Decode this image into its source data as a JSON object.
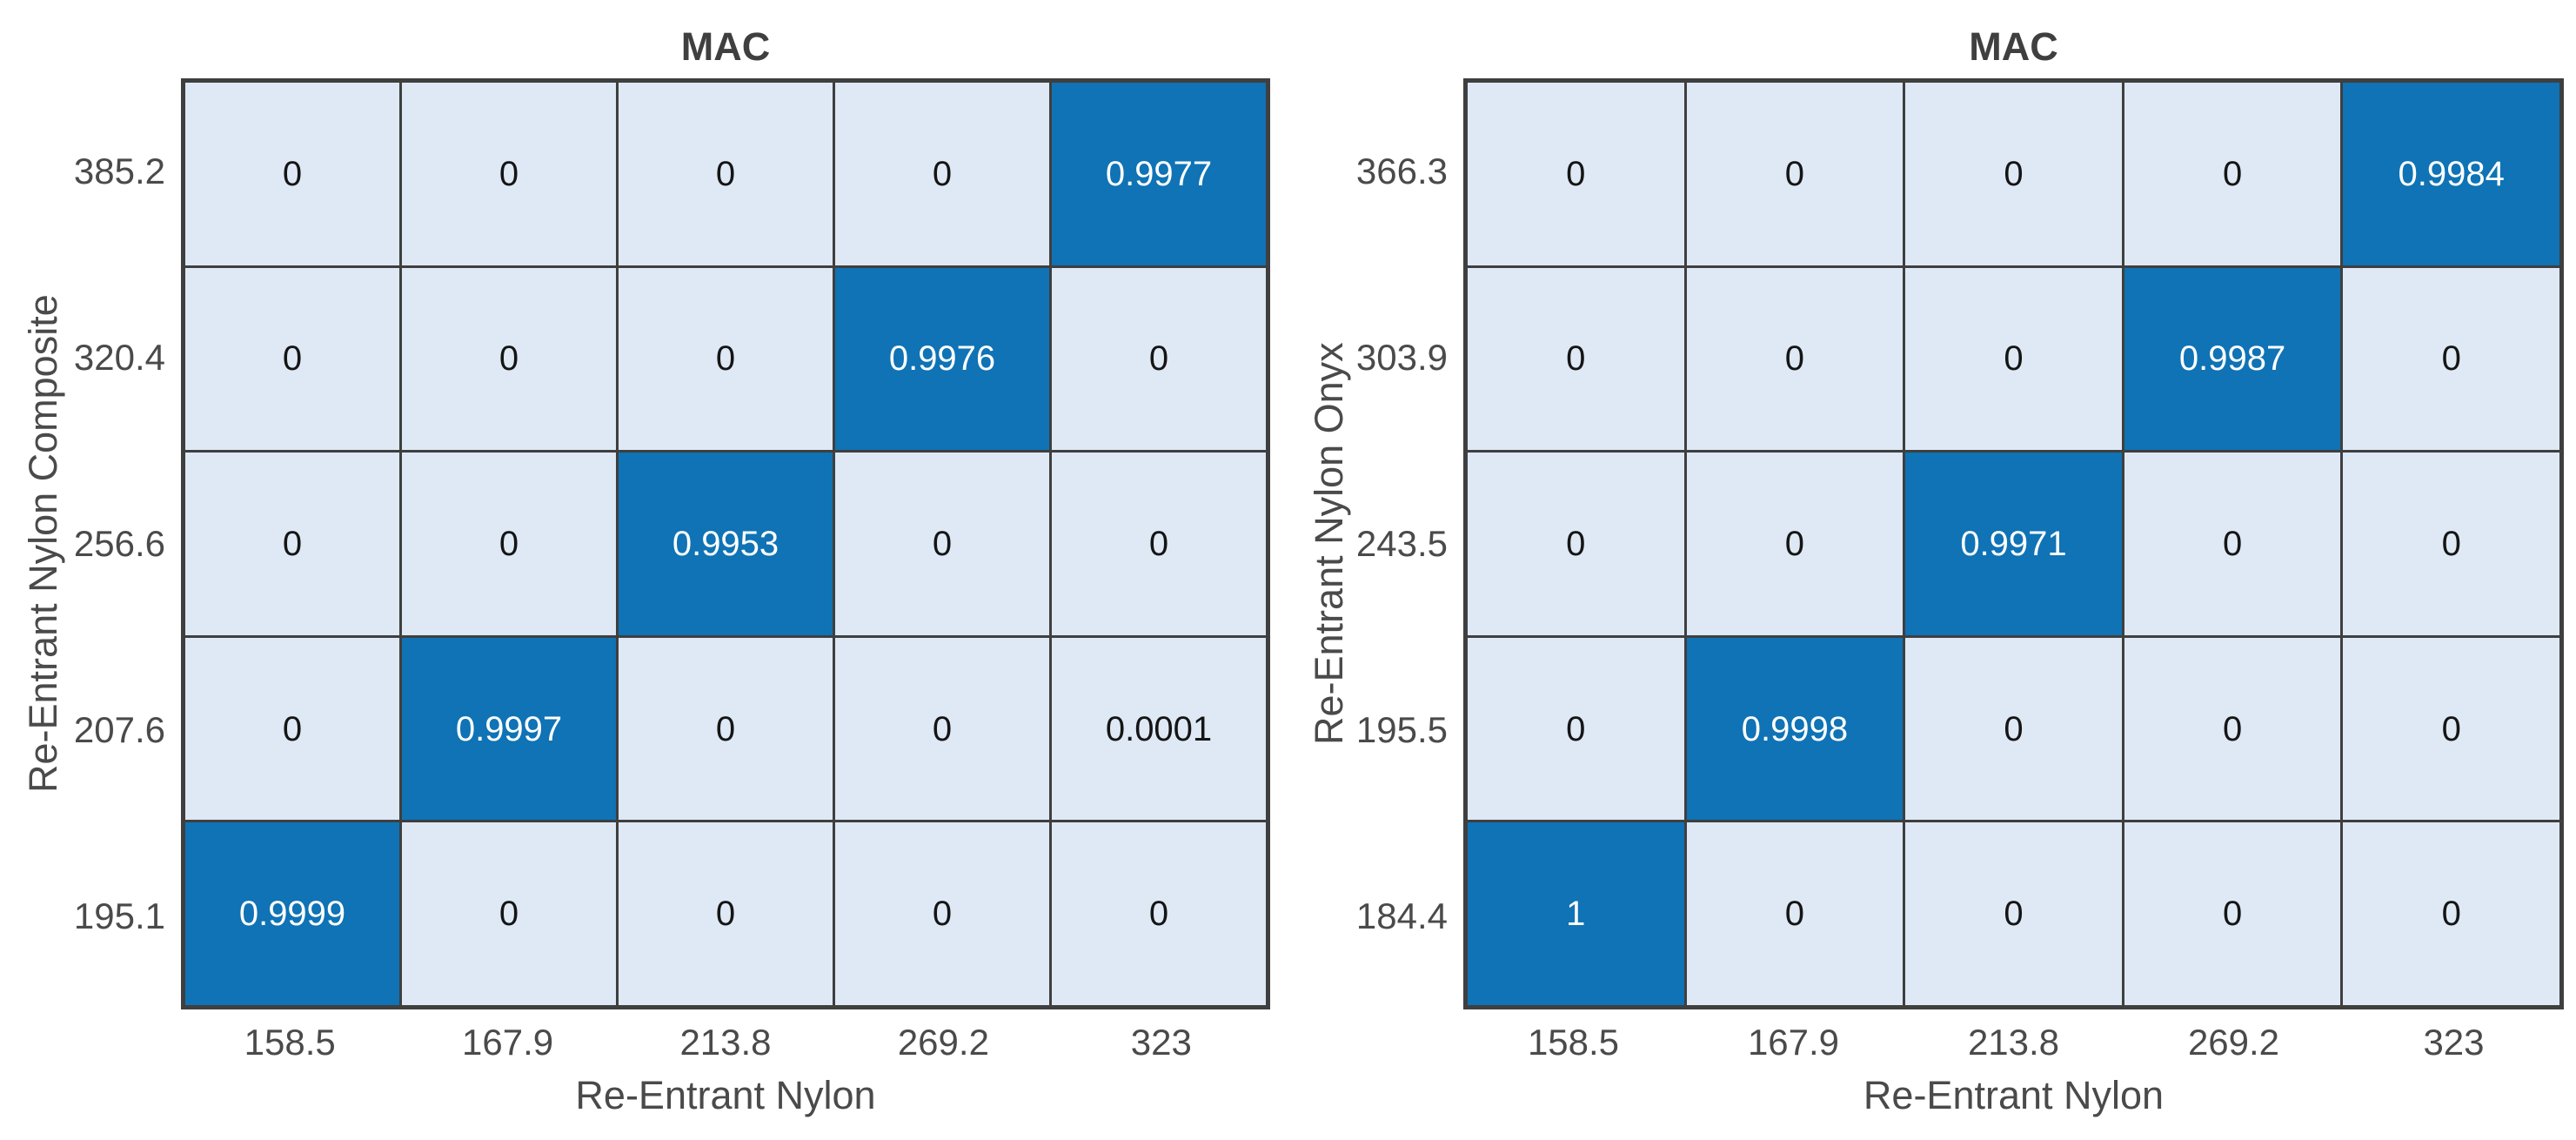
{
  "colors": {
    "cell_high": "#0f73b5",
    "cell_low": "#dee9f5",
    "grid_line": "#3f3f3f",
    "cell_text_dark": "#151515",
    "cell_text_light": "#ffffff",
    "tick_text": "#4a4a4a",
    "axis_label_text": "#4a4a4a",
    "title_text": "#3f3f3f"
  },
  "chart_data": [
    {
      "type": "heatmap",
      "title": "MAC",
      "xlabel": "Re-Entrant Nylon",
      "ylabel": "Re-Entrant Nylon Composite",
      "x_ticks": [
        "158.5",
        "167.9",
        "213.8",
        "269.2",
        "323"
      ],
      "y_ticks": [
        "385.2",
        "320.4",
        "256.6",
        "207.6",
        "195.1"
      ],
      "rows": [
        [
          0,
          0,
          0,
          0,
          0.9977
        ],
        [
          0,
          0,
          0,
          0.9976,
          0
        ],
        [
          0,
          0,
          0.9953,
          0,
          0
        ],
        [
          0,
          0.9997,
          0,
          0,
          0.0001
        ],
        [
          0.9999,
          0,
          0,
          0,
          0
        ]
      ],
      "cell_labels": [
        [
          "0",
          "0",
          "0",
          "0",
          "0.9977"
        ],
        [
          "0",
          "0",
          "0",
          "0.9976",
          "0"
        ],
        [
          "0",
          "0",
          "0.9953",
          "0",
          "0"
        ],
        [
          "0",
          "0.9997",
          "0",
          "0",
          "0.0001"
        ],
        [
          "0.9999",
          "0",
          "0",
          "0",
          "0"
        ]
      ],
      "value_range": [
        0,
        1
      ],
      "grid": true,
      "legend": "none"
    },
    {
      "type": "heatmap",
      "title": "MAC",
      "xlabel": "Re-Entrant Nylon",
      "ylabel": "Re-Entrant Nylon Onyx",
      "x_ticks": [
        "158.5",
        "167.9",
        "213.8",
        "269.2",
        "323"
      ],
      "y_ticks": [
        "366.3",
        "303.9",
        "243.5",
        "195.5",
        "184.4"
      ],
      "rows": [
        [
          0,
          0,
          0,
          0,
          0.9984
        ],
        [
          0,
          0,
          0,
          0.9987,
          0
        ],
        [
          0,
          0,
          0.9971,
          0,
          0
        ],
        [
          0,
          0.9998,
          0,
          0,
          0
        ],
        [
          1,
          0,
          0,
          0,
          0
        ]
      ],
      "cell_labels": [
        [
          "0",
          "0",
          "0",
          "0",
          "0.9984"
        ],
        [
          "0",
          "0",
          "0",
          "0.9987",
          "0"
        ],
        [
          "0",
          "0",
          "0.9971",
          "0",
          "0"
        ],
        [
          "0",
          "0.9998",
          "0",
          "0",
          "0"
        ],
        [
          "1",
          "0",
          "0",
          "0",
          "0"
        ]
      ],
      "value_range": [
        0,
        1
      ],
      "grid": true,
      "legend": "none"
    }
  ]
}
